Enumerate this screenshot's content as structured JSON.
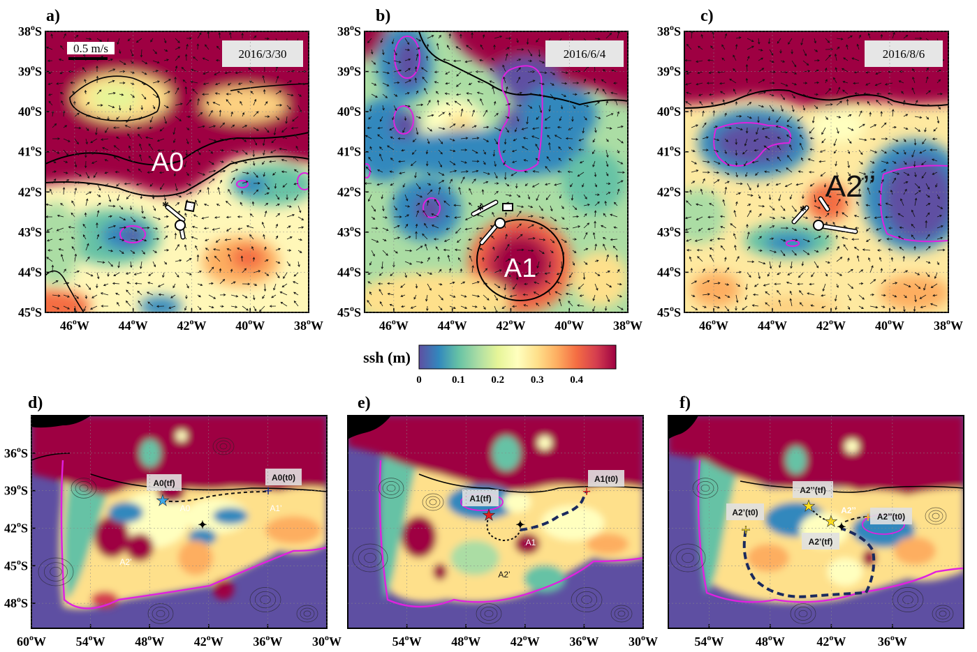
{
  "chart_data": [
    {
      "type": "heatmap",
      "panel": "a)",
      "date": "2016/3/30",
      "scale_label": "0.5 m/s",
      "xticks": [
        "46°W",
        "44°W",
        "42°W",
        "40°W",
        "38°W"
      ],
      "yticks": [
        "38°S",
        "39°S",
        "40°S",
        "41°S",
        "42°S",
        "43°S",
        "44°S",
        "45°S"
      ],
      "xlim": [
        -47,
        -38
      ],
      "ylim": [
        -45,
        -38
      ],
      "annotations": [
        {
          "text": "A0",
          "x": -43.5,
          "y": -41.3
        }
      ]
    },
    {
      "type": "heatmap",
      "panel": "b)",
      "date": "2016/6/4",
      "xticks": [
        "46°W",
        "44°W",
        "42°W",
        "40°W",
        "38°W"
      ],
      "yticks": [
        "38°S",
        "39°S",
        "40°S",
        "41°S",
        "42°S",
        "43°S",
        "44°S",
        "45°S"
      ],
      "xlim": [
        -47,
        -38
      ],
      "ylim": [
        -45,
        -38
      ],
      "annotations": [
        {
          "text": "A1",
          "x": -41.3,
          "y": -43.9
        }
      ]
    },
    {
      "type": "heatmap",
      "panel": "c)",
      "date": "2016/8/6",
      "xticks": [
        "46°W",
        "44°W",
        "42°W",
        "40°W",
        "38°W"
      ],
      "yticks": [
        "38°S",
        "39°S",
        "40°S",
        "41°S",
        "42°S",
        "43°S",
        "44°S",
        "45°S"
      ],
      "xlim": [
        -47,
        -38
      ],
      "ylim": [
        -45,
        -38
      ],
      "annotations": [
        {
          "text": "A2’’",
          "x": -41.5,
          "y": -41.9
        }
      ]
    },
    {
      "type": "heatmap",
      "panel": "d)",
      "xticks": [
        "60°W",
        "54°W",
        "48°W",
        "42°W",
        "36°W",
        "30°W"
      ],
      "yticks": [
        "36°S",
        "39°S",
        "42°S",
        "45°S",
        "48°S"
      ],
      "xlim": [
        -60,
        -30
      ],
      "ylim": [
        -50,
        -33
      ],
      "annotations": [
        {
          "text": "A0(tf)",
          "x": -46.5,
          "y": -40.0
        },
        {
          "text": "A0(t0)",
          "x": -35.5,
          "y": -39.7
        },
        {
          "text": "A0",
          "x": -44.5,
          "y": -41.5
        },
        {
          "text": "A1’",
          "x": -36.0,
          "y": -41.5
        },
        {
          "text": "A2’",
          "x": -51.0,
          "y": -45.4
        }
      ]
    },
    {
      "type": "heatmap",
      "panel": "e)",
      "xticks": [
        "54°W",
        "48°W",
        "42°W",
        "36°W",
        "30°W"
      ],
      "xlim": [
        -60,
        -30
      ],
      "ylim": [
        -50,
        -33
      ],
      "annotations": [
        {
          "text": "A1(tf)",
          "x": -47.5,
          "y": -40.6
        },
        {
          "text": "A1(t0)",
          "x": -34.5,
          "y": -39.7
        },
        {
          "text": "A1",
          "x": -41.5,
          "y": -43.7
        },
        {
          "text": "A2’",
          "x": -43.5,
          "y": -46.7
        }
      ]
    },
    {
      "type": "heatmap",
      "panel": "f)",
      "xticks": [
        "54°W",
        "48°W",
        "42°W",
        "36°W"
      ],
      "xlim": [
        -58,
        -29
      ],
      "ylim": [
        -50,
        -33
      ],
      "annotations": [
        {
          "text": "A2’’(tf)",
          "x": -46.0,
          "y": -39.9
        },
        {
          "text": "A2’(t0)",
          "x": -54.5,
          "y": -41.8
        },
        {
          "text": "A2’’",
          "x": -42.0,
          "y": -41.8
        },
        {
          "text": "A2’’(t0)",
          "x": -36.3,
          "y": -41.9
        },
        {
          "text": "A2’(tf)",
          "x": -43.5,
          "y": -43.7
        }
      ]
    }
  ],
  "colorbar": {
    "label": "ssh (m)",
    "ticks": [
      "0",
      "0.1",
      "0.2",
      "0.3",
      "0.4"
    ],
    "range": [
      0,
      0.5
    ],
    "colors": [
      "#5e4fa2",
      "#3288bd",
      "#66c2a5",
      "#abdda4",
      "#e6f598",
      "#ffffbf",
      "#fee08b",
      "#fdae61",
      "#f46d43",
      "#d53e4f",
      "#9e0142"
    ]
  }
}
